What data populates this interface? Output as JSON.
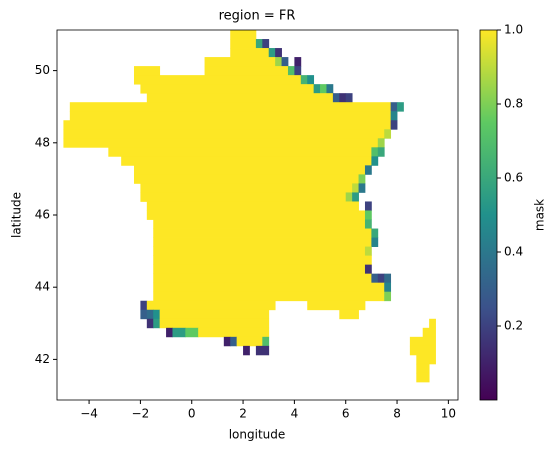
{
  "chart_data": {
    "type": "mask_map",
    "title": "region = FR",
    "x_label": "longitude",
    "y_label": "latitude",
    "colorbar_label": "mask",
    "colormap": "viridis",
    "clim": [
      0,
      1
    ],
    "cbar_ticks": [
      0.2,
      0.4,
      0.6,
      0.8,
      {
        "value": 1,
        "label": "1.0"
      }
    ],
    "xlim": [
      -5.25,
      10.375
    ],
    "ylim": [
      40.875,
      51.125
    ],
    "xticks": [
      {
        "value": -4,
        "label": "−4"
      },
      {
        "value": -2,
        "label": "−2"
      },
      0,
      2,
      4,
      6,
      8,
      10
    ],
    "yticks": [
      42,
      44,
      46,
      48,
      50
    ],
    "cell_size": 0.25,
    "rows": [
      {
        "lat": 50.875,
        "spans": [
          [
            1.5,
            2.5,
            1
          ]
        ]
      },
      {
        "lat": 50.625,
        "spans": [
          [
            1.5,
            2.5,
            1
          ],
          [
            2.5,
            2.75,
            0.6
          ],
          [
            2.75,
            3.0,
            0.2
          ]
        ]
      },
      {
        "lat": 50.375,
        "spans": [
          [
            1.5,
            3.0,
            1
          ],
          [
            3.0,
            3.25,
            0.55
          ],
          [
            3.25,
            3.5,
            0.15
          ]
        ]
      },
      {
        "lat": 50.125,
        "spans": [
          [
            0.5,
            3.25,
            1
          ],
          [
            3.25,
            3.5,
            0.85
          ],
          [
            3.5,
            3.75,
            0.3
          ],
          [
            4.0,
            4.25,
            0.1
          ]
        ]
      },
      {
        "lat": 49.875,
        "spans": [
          [
            -2.25,
            -1.25,
            1
          ],
          [
            0.5,
            3.75,
            1
          ],
          [
            3.75,
            4.0,
            0.7
          ],
          [
            4.0,
            4.25,
            0.2
          ]
        ]
      },
      {
        "lat": 49.625,
        "spans": [
          [
            -2.25,
            4.25,
            1
          ],
          [
            4.25,
            4.5,
            0.65
          ],
          [
            4.5,
            4.75,
            0.5
          ]
        ]
      },
      {
        "lat": 49.375,
        "spans": [
          [
            -2.0,
            4.75,
            1
          ],
          [
            4.75,
            5.0,
            0.55
          ],
          [
            5.0,
            5.25,
            0.75
          ],
          [
            5.25,
            5.5,
            0.4
          ]
        ]
      },
      {
        "lat": 49.125,
        "spans": [
          [
            -1.75,
            5.5,
            1
          ],
          [
            5.5,
            5.75,
            0.3
          ],
          [
            5.75,
            6.0,
            0.15
          ],
          [
            6.0,
            6.25,
            0.2
          ]
        ]
      },
      {
        "lat": 48.875,
        "spans": [
          [
            -4.75,
            7.75,
            1
          ],
          [
            7.75,
            8.0,
            0.3
          ],
          [
            8.0,
            8.25,
            0.55
          ]
        ]
      },
      {
        "lat": 48.625,
        "spans": [
          [
            -4.75,
            7.75,
            1
          ],
          [
            7.75,
            8.0,
            0.45
          ]
        ]
      },
      {
        "lat": 48.375,
        "spans": [
          [
            -5.0,
            7.75,
            1
          ],
          [
            7.75,
            8.0,
            0.2
          ]
        ]
      },
      {
        "lat": 48.125,
        "spans": [
          [
            -5.0,
            7.5,
            1
          ],
          [
            7.5,
            7.75,
            0.9
          ]
        ]
      },
      {
        "lat": 47.875,
        "spans": [
          [
            -5.0,
            7.25,
            1
          ],
          [
            7.25,
            7.5,
            0.85
          ]
        ]
      },
      {
        "lat": 47.625,
        "spans": [
          [
            -3.25,
            7.0,
            1
          ],
          [
            7.0,
            7.25,
            0.7
          ],
          [
            7.25,
            7.5,
            0.6
          ]
        ]
      },
      {
        "lat": 47.375,
        "spans": [
          [
            -2.75,
            7.0,
            1
          ],
          [
            7.0,
            7.25,
            0.5
          ]
        ]
      },
      {
        "lat": 47.125,
        "spans": [
          [
            -2.25,
            6.75,
            1
          ],
          [
            6.75,
            7.0,
            0.4
          ]
        ]
      },
      {
        "lat": 46.875,
        "spans": [
          [
            -2.25,
            6.5,
            1
          ],
          [
            6.5,
            6.75,
            0.8
          ]
        ]
      },
      {
        "lat": 46.625,
        "spans": [
          [
            -2.0,
            6.25,
            1
          ],
          [
            6.25,
            6.5,
            0.9
          ],
          [
            6.5,
            6.75,
            0.4
          ]
        ]
      },
      {
        "lat": 46.375,
        "spans": [
          [
            -2.0,
            6.0,
            1
          ],
          [
            6.0,
            6.25,
            0.85
          ],
          [
            6.25,
            6.5,
            0.55
          ]
        ]
      },
      {
        "lat": 46.125,
        "spans": [
          [
            -1.75,
            6.5,
            1
          ],
          [
            6.75,
            7.0,
            0.2
          ]
        ]
      },
      {
        "lat": 45.875,
        "spans": [
          [
            -1.75,
            6.75,
            1
          ],
          [
            6.75,
            7.0,
            0.75
          ]
        ]
      },
      {
        "lat": 45.625,
        "spans": [
          [
            -1.5,
            6.75,
            1
          ],
          [
            6.75,
            7.0,
            0.65
          ]
        ]
      },
      {
        "lat": 45.375,
        "spans": [
          [
            -1.5,
            7.0,
            1
          ],
          [
            7.0,
            7.25,
            0.6
          ]
        ]
      },
      {
        "lat": 45.125,
        "spans": [
          [
            -1.5,
            7.0,
            1
          ],
          [
            7.0,
            7.25,
            0.45
          ]
        ]
      },
      {
        "lat": 44.875,
        "spans": [
          [
            -1.5,
            6.75,
            1
          ],
          [
            6.75,
            7.0,
            0.9
          ]
        ]
      },
      {
        "lat": 44.625,
        "spans": [
          [
            -1.5,
            7.0,
            1
          ]
        ]
      },
      {
        "lat": 44.375,
        "spans": [
          [
            -1.5,
            6.75,
            1
          ],
          [
            6.75,
            7.0,
            0.15
          ]
        ]
      },
      {
        "lat": 44.125,
        "spans": [
          [
            -1.5,
            7.0,
            1
          ],
          [
            7.0,
            7.25,
            0.3
          ],
          [
            7.25,
            7.5,
            0.2
          ],
          [
            7.5,
            7.75,
            0.35
          ]
        ]
      },
      {
        "lat": 43.875,
        "spans": [
          [
            -1.5,
            7.5,
            1
          ],
          [
            7.5,
            7.75,
            0.45
          ]
        ]
      },
      {
        "lat": 43.625,
        "spans": [
          [
            -1.5,
            7.5,
            1
          ],
          [
            7.5,
            7.75,
            0.8
          ]
        ]
      },
      {
        "lat": 43.375,
        "spans": [
          [
            -2.0,
            -1.75,
            0.2
          ],
          [
            -1.75,
            3.25,
            1
          ],
          [
            4.5,
            6.75,
            1
          ]
        ]
      },
      {
        "lat": 43.125,
        "spans": [
          [
            -2.0,
            -1.75,
            0.3
          ],
          [
            -1.75,
            -1.5,
            0.35
          ],
          [
            -1.5,
            -1.25,
            0.5
          ],
          [
            -1.25,
            3.0,
            1
          ],
          [
            5.75,
            6.5,
            1
          ]
        ]
      },
      {
        "lat": 42.875,
        "spans": [
          [
            -1.75,
            -1.5,
            0.15
          ],
          [
            -1.5,
            -1.25,
            0.55
          ],
          [
            -1.25,
            3.0,
            1
          ],
          [
            9.25,
            9.5,
            1
          ]
        ]
      },
      {
        "lat": 42.625,
        "spans": [
          [
            -1.0,
            -0.75,
            0.1
          ],
          [
            -0.75,
            -0.25,
            0.55
          ],
          [
            -0.25,
            0.25,
            0.75
          ],
          [
            0.25,
            3.0,
            1
          ],
          [
            9.0,
            9.5,
            1
          ]
        ]
      },
      {
        "lat": 42.375,
        "spans": [
          [
            1.25,
            1.5,
            0.1
          ],
          [
            1.5,
            1.75,
            0.3
          ],
          [
            1.75,
            2.75,
            1
          ],
          [
            2.75,
            3.0,
            0.7
          ],
          [
            8.5,
            9.5,
            1
          ]
        ]
      },
      {
        "lat": 42.125,
        "spans": [
          [
            2.0,
            2.25,
            0.1
          ],
          [
            2.5,
            3.0,
            0.15
          ],
          [
            8.5,
            9.5,
            1
          ]
        ]
      },
      {
        "lat": 41.875,
        "spans": [
          [
            8.75,
            9.5,
            1
          ]
        ]
      },
      {
        "lat": 41.625,
        "spans": [
          [
            8.75,
            9.25,
            1
          ]
        ]
      },
      {
        "lat": 41.375,
        "spans": [
          [
            8.75,
            9.25,
            1
          ]
        ]
      }
    ]
  }
}
